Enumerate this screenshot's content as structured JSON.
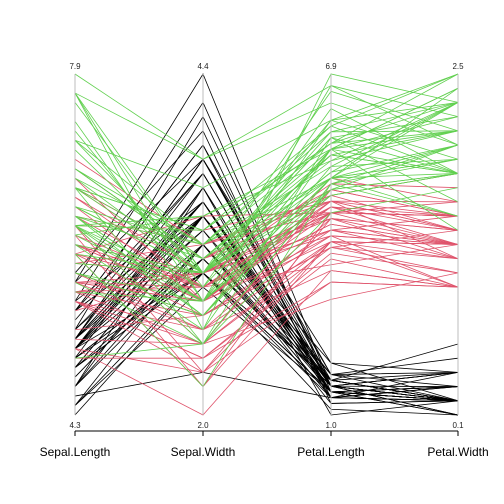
{
  "chart_data": {
    "type": "parallel_coordinates",
    "dimensions": [
      {
        "name": "Sepal.Length",
        "min": 4.3,
        "max": 7.9,
        "min_label": "4.3",
        "max_label": "7.9"
      },
      {
        "name": "Sepal.Width",
        "min": 2.0,
        "max": 4.4,
        "min_label": "2.0",
        "max_label": "4.4"
      },
      {
        "name": "Petal.Length",
        "min": 1.0,
        "max": 6.9,
        "min_label": "1.0",
        "max_label": "6.9"
      },
      {
        "name": "Petal.Width",
        "min": 0.1,
        "max": 2.5,
        "min_label": "0.1",
        "max_label": "2.5"
      }
    ],
    "grid": false,
    "series": [
      {
        "color": "#000000",
        "lines": [
          [
            5.1,
            3.5,
            1.4,
            0.2
          ],
          [
            4.9,
            3.0,
            1.4,
            0.2
          ],
          [
            4.7,
            3.2,
            1.3,
            0.2
          ],
          [
            4.6,
            3.1,
            1.5,
            0.2
          ],
          [
            5.0,
            3.6,
            1.4,
            0.2
          ],
          [
            5.4,
            3.9,
            1.7,
            0.4
          ],
          [
            4.6,
            3.4,
            1.4,
            0.3
          ],
          [
            5.0,
            3.4,
            1.5,
            0.2
          ],
          [
            4.4,
            2.9,
            1.4,
            0.2
          ],
          [
            4.9,
            3.1,
            1.5,
            0.1
          ],
          [
            5.4,
            3.7,
            1.5,
            0.2
          ],
          [
            4.8,
            3.4,
            1.6,
            0.2
          ],
          [
            4.8,
            3.0,
            1.4,
            0.1
          ],
          [
            4.3,
            3.0,
            1.1,
            0.1
          ],
          [
            5.8,
            4.0,
            1.2,
            0.2
          ],
          [
            5.7,
            4.4,
            1.5,
            0.4
          ],
          [
            5.4,
            3.9,
            1.3,
            0.4
          ],
          [
            5.1,
            3.5,
            1.4,
            0.3
          ],
          [
            5.7,
            3.8,
            1.7,
            0.3
          ],
          [
            5.1,
            3.8,
            1.5,
            0.3
          ],
          [
            5.4,
            3.4,
            1.7,
            0.2
          ],
          [
            5.1,
            3.7,
            1.5,
            0.4
          ],
          [
            4.6,
            3.6,
            1.0,
            0.2
          ],
          [
            5.1,
            3.3,
            1.7,
            0.5
          ],
          [
            4.8,
            3.4,
            1.9,
            0.2
          ],
          [
            5.0,
            3.0,
            1.6,
            0.2
          ],
          [
            5.0,
            3.4,
            1.6,
            0.4
          ],
          [
            5.2,
            3.5,
            1.5,
            0.2
          ],
          [
            5.2,
            3.4,
            1.4,
            0.2
          ],
          [
            4.7,
            3.2,
            1.6,
            0.2
          ],
          [
            4.8,
            3.1,
            1.6,
            0.2
          ],
          [
            5.4,
            3.4,
            1.5,
            0.4
          ],
          [
            5.2,
            4.1,
            1.5,
            0.1
          ],
          [
            5.5,
            4.2,
            1.4,
            0.2
          ],
          [
            4.9,
            3.1,
            1.5,
            0.2
          ],
          [
            5.0,
            3.2,
            1.2,
            0.2
          ],
          [
            5.5,
            3.5,
            1.3,
            0.2
          ],
          [
            4.9,
            3.6,
            1.4,
            0.1
          ],
          [
            4.4,
            3.0,
            1.3,
            0.2
          ],
          [
            5.1,
            3.4,
            1.5,
            0.2
          ],
          [
            5.0,
            3.5,
            1.3,
            0.3
          ],
          [
            4.5,
            2.3,
            1.3,
            0.3
          ],
          [
            4.4,
            3.2,
            1.3,
            0.2
          ],
          [
            5.0,
            3.5,
            1.6,
            0.6
          ],
          [
            5.1,
            3.8,
            1.9,
            0.4
          ],
          [
            4.8,
            3.0,
            1.4,
            0.3
          ],
          [
            5.1,
            3.8,
            1.6,
            0.2
          ],
          [
            4.6,
            3.2,
            1.4,
            0.2
          ],
          [
            5.3,
            3.7,
            1.5,
            0.2
          ],
          [
            5.0,
            3.3,
            1.4,
            0.2
          ]
        ]
      },
      {
        "color": "#DF536B",
        "lines": [
          [
            7.0,
            3.2,
            4.7,
            1.4
          ],
          [
            6.4,
            3.2,
            4.5,
            1.5
          ],
          [
            6.9,
            3.1,
            4.9,
            1.5
          ],
          [
            5.5,
            2.3,
            4.0,
            1.3
          ],
          [
            6.5,
            2.8,
            4.6,
            1.5
          ],
          [
            5.7,
            2.8,
            4.5,
            1.3
          ],
          [
            6.3,
            3.3,
            4.7,
            1.6
          ],
          [
            4.9,
            2.4,
            3.3,
            1.0
          ],
          [
            6.6,
            2.9,
            4.6,
            1.3
          ],
          [
            5.2,
            2.7,
            3.9,
            1.4
          ],
          [
            5.0,
            2.0,
            3.5,
            1.0
          ],
          [
            5.9,
            3.0,
            4.2,
            1.5
          ],
          [
            6.0,
            2.2,
            4.0,
            1.0
          ],
          [
            6.1,
            2.9,
            4.7,
            1.4
          ],
          [
            5.6,
            2.9,
            3.6,
            1.3
          ],
          [
            6.7,
            3.1,
            4.4,
            1.4
          ],
          [
            5.6,
            3.0,
            4.5,
            1.5
          ],
          [
            5.8,
            2.7,
            4.1,
            1.0
          ],
          [
            6.2,
            2.2,
            4.5,
            1.5
          ],
          [
            5.6,
            2.5,
            3.9,
            1.1
          ],
          [
            5.9,
            3.2,
            4.8,
            1.8
          ],
          [
            6.1,
            2.8,
            4.0,
            1.3
          ],
          [
            6.3,
            2.5,
            4.9,
            1.5
          ],
          [
            6.1,
            2.8,
            4.7,
            1.2
          ],
          [
            6.4,
            2.9,
            4.3,
            1.3
          ],
          [
            6.6,
            3.0,
            4.4,
            1.4
          ],
          [
            6.8,
            2.8,
            4.8,
            1.4
          ],
          [
            6.7,
            3.0,
            5.0,
            1.7
          ],
          [
            6.0,
            2.9,
            4.5,
            1.5
          ],
          [
            5.7,
            2.6,
            3.5,
            1.0
          ],
          [
            5.5,
            2.4,
            3.8,
            1.1
          ],
          [
            5.5,
            2.4,
            3.7,
            1.0
          ],
          [
            5.8,
            2.7,
            3.9,
            1.2
          ],
          [
            6.0,
            2.7,
            5.1,
            1.6
          ],
          [
            5.4,
            3.0,
            4.5,
            1.5
          ],
          [
            6.0,
            3.4,
            4.5,
            1.6
          ],
          [
            6.7,
            3.1,
            4.7,
            1.5
          ],
          [
            6.3,
            2.3,
            4.4,
            1.3
          ],
          [
            5.6,
            3.0,
            4.1,
            1.3
          ],
          [
            5.5,
            2.5,
            4.0,
            1.3
          ],
          [
            5.5,
            2.6,
            4.4,
            1.2
          ],
          [
            6.1,
            3.0,
            4.6,
            1.4
          ],
          [
            5.8,
            2.6,
            4.0,
            1.2
          ],
          [
            5.0,
            2.3,
            3.3,
            1.0
          ],
          [
            5.6,
            2.7,
            4.2,
            1.3
          ],
          [
            5.7,
            3.0,
            4.2,
            1.2
          ],
          [
            5.7,
            2.9,
            4.2,
            1.3
          ],
          [
            6.2,
            2.9,
            4.3,
            1.3
          ],
          [
            5.1,
            2.5,
            3.0,
            1.1
          ],
          [
            5.7,
            2.8,
            4.1,
            1.3
          ]
        ]
      },
      {
        "color": "#61D04F",
        "lines": [
          [
            6.3,
            3.3,
            6.0,
            2.5
          ],
          [
            5.8,
            2.7,
            5.1,
            1.9
          ],
          [
            7.1,
            3.0,
            5.9,
            2.1
          ],
          [
            6.3,
            2.9,
            5.6,
            1.8
          ],
          [
            6.5,
            3.0,
            5.8,
            2.2
          ],
          [
            7.6,
            3.0,
            6.6,
            2.1
          ],
          [
            4.9,
            2.5,
            4.5,
            1.7
          ],
          [
            7.3,
            2.9,
            6.3,
            1.8
          ],
          [
            6.7,
            2.5,
            5.8,
            1.8
          ],
          [
            7.2,
            3.6,
            6.1,
            2.5
          ],
          [
            6.5,
            3.2,
            5.1,
            2.0
          ],
          [
            6.4,
            2.7,
            5.3,
            1.9
          ],
          [
            6.8,
            3.0,
            5.5,
            2.1
          ],
          [
            5.7,
            2.5,
            5.0,
            2.0
          ],
          [
            5.8,
            2.8,
            5.1,
            2.4
          ],
          [
            6.4,
            3.2,
            5.3,
            2.3
          ],
          [
            6.5,
            3.0,
            5.5,
            1.8
          ],
          [
            7.7,
            3.8,
            6.7,
            2.2
          ],
          [
            7.7,
            2.6,
            6.9,
            2.3
          ],
          [
            6.0,
            2.2,
            5.0,
            1.5
          ],
          [
            6.9,
            3.2,
            5.7,
            2.3
          ],
          [
            5.6,
            2.8,
            4.9,
            2.0
          ],
          [
            7.7,
            2.8,
            6.7,
            2.0
          ],
          [
            6.3,
            2.7,
            4.9,
            1.8
          ],
          [
            6.7,
            3.3,
            5.7,
            2.1
          ],
          [
            7.2,
            3.2,
            6.0,
            1.8
          ],
          [
            6.2,
            2.8,
            4.8,
            1.8
          ],
          [
            6.1,
            3.0,
            4.9,
            1.8
          ],
          [
            6.4,
            2.8,
            5.6,
            2.1
          ],
          [
            7.2,
            3.0,
            5.8,
            1.6
          ],
          [
            7.4,
            2.8,
            6.1,
            1.9
          ],
          [
            7.9,
            3.8,
            6.4,
            2.0
          ],
          [
            6.4,
            2.8,
            5.6,
            2.2
          ],
          [
            6.3,
            2.8,
            5.1,
            1.5
          ],
          [
            6.1,
            2.6,
            5.6,
            1.4
          ],
          [
            7.7,
            3.0,
            6.1,
            2.3
          ],
          [
            6.3,
            3.4,
            5.6,
            2.4
          ],
          [
            6.4,
            3.1,
            5.5,
            1.8
          ],
          [
            6.0,
            3.0,
            4.8,
            1.8
          ],
          [
            6.9,
            3.1,
            5.4,
            2.1
          ],
          [
            6.7,
            3.1,
            5.6,
            2.4
          ],
          [
            6.9,
            3.1,
            5.1,
            2.3
          ],
          [
            5.8,
            2.7,
            5.1,
            1.9
          ],
          [
            6.8,
            3.2,
            5.9,
            2.3
          ],
          [
            6.7,
            3.3,
            5.7,
            2.5
          ],
          [
            6.7,
            3.0,
            5.2,
            2.3
          ],
          [
            6.3,
            2.5,
            5.0,
            1.9
          ],
          [
            6.5,
            3.0,
            5.2,
            2.0
          ],
          [
            6.2,
            3.4,
            5.4,
            2.3
          ],
          [
            5.9,
            3.0,
            5.1,
            1.8
          ]
        ]
      }
    ]
  }
}
